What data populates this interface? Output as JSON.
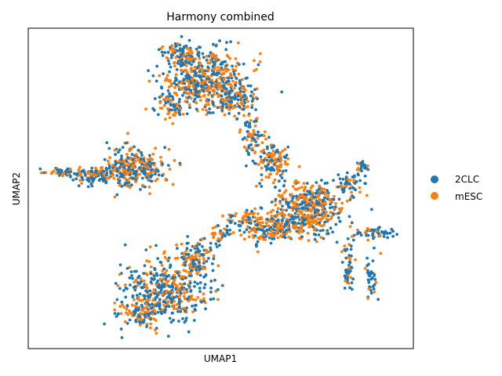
{
  "chart_data": {
    "type": "scatter",
    "title": "Harmony combined",
    "xlabel": "UMAP1",
    "ylabel": "UMAP2",
    "xticks": "none",
    "yticks": "none",
    "grid": false,
    "legend_position": "right",
    "series": [
      {
        "name": "2CLC",
        "color": "#1f77b4"
      },
      {
        "name": "mESC",
        "color": "#ff7f0e"
      }
    ],
    "point_count_approx": 3000,
    "clusters": [
      {
        "region": "top-center",
        "density": "high",
        "mix": [
          0.5,
          0.5
        ]
      },
      {
        "region": "left-wing",
        "density": "high",
        "mix": [
          0.45,
          0.55
        ]
      },
      {
        "region": "center-right-junction",
        "density": "high",
        "mix": [
          0.55,
          0.45
        ]
      },
      {
        "region": "right-arm-upper",
        "density": "low",
        "mix": [
          0.2,
          0.8
        ]
      },
      {
        "region": "right-arm-lower",
        "density": "medium",
        "mix": [
          0.4,
          0.6
        ]
      },
      {
        "region": "bottom-center",
        "density": "high",
        "mix": [
          0.45,
          0.55
        ]
      }
    ]
  }
}
